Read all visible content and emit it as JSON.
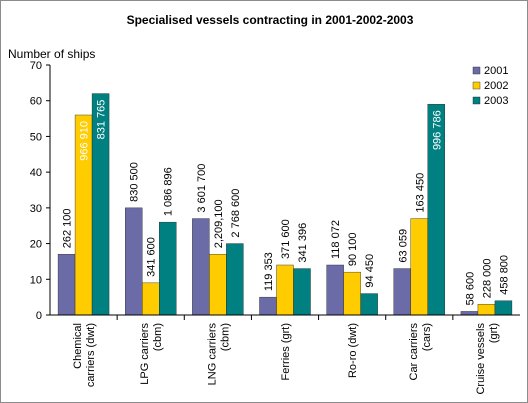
{
  "chart_data": {
    "type": "bar",
    "title": "Specialised vessels contracting in 2001-2002-2003",
    "ylabel": "Number of ships",
    "xlabel": "",
    "ylim": [
      0,
      70
    ],
    "yticks": [
      "0",
      "10",
      "20",
      "30",
      "40",
      "50",
      "60",
      "70"
    ],
    "categories": [
      [
        "Chemical",
        "carriers (dwt)"
      ],
      [
        "LPG carriers",
        "(cbm)"
      ],
      [
        "LNG carriers",
        "(cbm)"
      ],
      [
        "Ferries (grt)"
      ],
      [
        "Ro-ro (dwt)"
      ],
      [
        "Car carriers",
        "(cars)"
      ],
      [
        "Cruise vessels",
        "(grt)"
      ]
    ],
    "series": [
      {
        "name": "2001",
        "color": "#6b6ba8",
        "values": [
          17,
          30,
          27,
          5,
          14,
          13,
          1
        ],
        "labels": [
          "262 100",
          "830 500",
          "3 601 700",
          "119 353",
          "118 072",
          "63 059",
          "58 600"
        ]
      },
      {
        "name": "2002",
        "color": "#ffcc00",
        "values": [
          56,
          9,
          17,
          14,
          12,
          27,
          3
        ],
        "labels": [
          "966 910",
          "341 600",
          "2,209,100",
          "371 600",
          "90 100",
          "163 450",
          "228 000"
        ]
      },
      {
        "name": "2003",
        "color": "#008080",
        "values": [
          62,
          26,
          20,
          13,
          6,
          59,
          4
        ],
        "labels": [
          "831 765",
          "1 086 896",
          "2 768 600",
          "341 396",
          "94 450",
          "996 786",
          "458 800"
        ]
      }
    ],
    "grid": false,
    "legend": "top-right"
  }
}
